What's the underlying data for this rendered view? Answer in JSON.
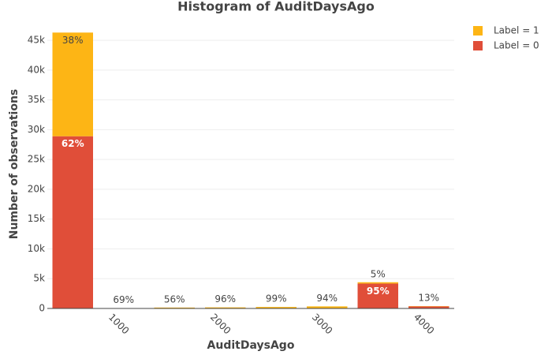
{
  "chart_data": {
    "type": "histogram",
    "title": "Histogram of AuditDaysAgo",
    "x_label": "AuditDaysAgo",
    "y_label": "Number of observations",
    "bins": [
      300,
      800,
      1300,
      1800,
      2300,
      2800,
      3300,
      3800,
      4300
    ],
    "series": [
      {
        "name": "Label = 0",
        "color": "#e04e39",
        "values": [
          28900,
          19,
          66,
          7,
          2,
          21,
          4180,
          348
        ],
        "percent_labels": [
          "62%",
          null,
          null,
          null,
          null,
          null,
          "95%",
          null
        ]
      },
      {
        "name": "Label = 1",
        "color": "#fdb515",
        "values": [
          17400,
          42,
          84,
          173,
          248,
          329,
          220,
          52
        ],
        "percent_labels": [
          "38%",
          "69%",
          "56%",
          "96%",
          "99%",
          "94%",
          "5%",
          "13%"
        ]
      }
    ],
    "xlim": [
      300,
      4300
    ],
    "xticks": [
      1000,
      2000,
      3000,
      4000
    ],
    "ylim": [
      0,
      47000
    ],
    "yticks": [
      0,
      {
        "value": 5000,
        "label": "5k"
      },
      {
        "value": 10000,
        "label": "10k"
      },
      {
        "value": 15000,
        "label": "15k"
      },
      {
        "value": 20000,
        "label": "20k"
      },
      {
        "value": 25000,
        "label": "25k"
      },
      {
        "value": 30000,
        "label": "30k"
      },
      {
        "value": 35000,
        "label": "35k"
      },
      {
        "value": 40000,
        "label": "40k"
      },
      {
        "value": 45000,
        "label": "45k"
      }
    ],
    "grid": true,
    "legend": "top-right"
  }
}
